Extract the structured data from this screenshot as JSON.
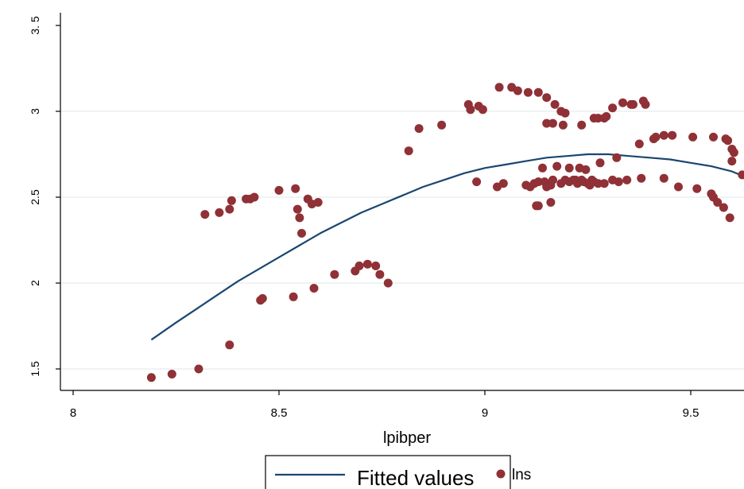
{
  "chart_data": {
    "type": "scatter",
    "title": "",
    "xlabel": "lpibper",
    "ylabel": "",
    "xlim": [
      8,
      9.62
    ],
    "ylim": [
      1.38,
      3.52
    ],
    "xticks": [
      {
        "value": 8,
        "label": "8"
      },
      {
        "value": 8.5,
        "label": "8.5"
      },
      {
        "value": 9,
        "label": "9"
      },
      {
        "value": 9.5,
        "label": "9.5"
      }
    ],
    "yticks": [
      {
        "value": 1.5,
        "label": "1.5"
      },
      {
        "value": 2,
        "label": "2"
      },
      {
        "value": 2.5,
        "label": "2.5"
      },
      {
        "value": 3,
        "label": "3"
      },
      {
        "value": 3.5,
        "label": "3. 5"
      }
    ],
    "grid": true,
    "legend_position": "bottom",
    "colors": {
      "fit": "#1a4670",
      "points": "#8f3136",
      "grid": "#e3ecec"
    },
    "series": [
      {
        "name": "Fitted values",
        "kind": "line",
        "x": [
          8.19,
          8.25,
          8.3,
          8.35,
          8.4,
          8.45,
          8.5,
          8.55,
          8.6,
          8.65,
          8.7,
          8.75,
          8.8,
          8.85,
          8.9,
          8.95,
          9.0,
          9.05,
          9.1,
          9.15,
          9.2,
          9.25,
          9.3,
          9.35,
          9.4,
          9.45,
          9.5,
          9.55,
          9.6,
          9.62
        ],
        "y": [
          1.67,
          1.77,
          1.85,
          1.93,
          2.01,
          2.08,
          2.15,
          2.22,
          2.29,
          2.35,
          2.41,
          2.46,
          2.51,
          2.56,
          2.6,
          2.64,
          2.67,
          2.69,
          2.71,
          2.73,
          2.74,
          2.75,
          2.75,
          2.74,
          2.73,
          2.72,
          2.7,
          2.68,
          2.65,
          2.63
        ]
      },
      {
        "name": "lns",
        "kind": "scatter",
        "x": [
          8.19,
          8.24,
          8.305,
          8.38,
          8.455,
          8.46,
          8.535,
          8.585,
          8.635,
          8.685,
          8.695,
          8.715,
          8.735,
          8.745,
          8.765,
          8.32,
          8.355,
          8.38,
          8.385,
          8.42,
          8.43,
          8.44,
          8.5,
          8.54,
          8.545,
          8.55,
          8.555,
          8.57,
          8.58,
          8.595,
          8.815,
          8.84,
          8.895,
          8.96,
          8.965,
          8.985,
          8.995,
          9.035,
          9.065,
          9.08,
          9.105,
          9.13,
          9.15,
          9.17,
          9.185,
          9.195,
          9.15,
          9.165,
          9.19,
          9.235,
          9.265,
          9.275,
          9.29,
          9.295,
          9.31,
          9.335,
          9.355,
          9.36,
          9.385,
          9.39,
          9.375,
          9.41,
          9.415,
          9.435,
          9.455,
          9.505,
          9.555,
          9.585,
          9.59,
          9.6,
          9.605,
          9.6,
          8.98,
          9.03,
          9.045,
          9.1,
          9.11,
          9.12,
          9.13,
          9.145,
          9.15,
          9.16,
          9.165,
          9.185,
          9.195,
          9.205,
          9.215,
          9.22,
          9.225,
          9.235,
          9.24,
          9.25,
          9.255,
          9.26,
          9.265,
          9.275,
          9.29,
          9.31,
          9.325,
          9.345,
          9.38,
          9.435,
          9.47,
          9.515,
          9.55,
          9.555,
          9.565,
          9.58,
          9.595,
          9.625,
          9.16,
          9.13,
          9.125,
          9.14,
          9.175,
          9.205,
          9.23,
          9.245,
          9.28,
          9.32
        ],
        "y": [
          1.45,
          1.47,
          1.5,
          1.64,
          1.9,
          1.91,
          1.92,
          1.97,
          2.05,
          2.07,
          2.1,
          2.11,
          2.1,
          2.05,
          2.0,
          2.4,
          2.41,
          2.43,
          2.48,
          2.49,
          2.49,
          2.5,
          2.54,
          2.55,
          2.43,
          2.38,
          2.29,
          2.49,
          2.46,
          2.47,
          2.77,
          2.9,
          2.92,
          3.04,
          3.01,
          3.03,
          3.01,
          3.14,
          3.14,
          3.12,
          3.11,
          3.11,
          3.08,
          3.04,
          3.0,
          2.99,
          2.93,
          2.93,
          2.92,
          2.92,
          2.96,
          2.96,
          2.96,
          2.97,
          3.02,
          3.05,
          3.04,
          3.04,
          3.06,
          3.04,
          2.81,
          2.84,
          2.85,
          2.86,
          2.86,
          2.85,
          2.85,
          2.84,
          2.83,
          2.78,
          2.76,
          2.71,
          2.59,
          2.56,
          2.58,
          2.57,
          2.56,
          2.58,
          2.59,
          2.59,
          2.56,
          2.57,
          2.6,
          2.58,
          2.6,
          2.59,
          2.6,
          2.6,
          2.58,
          2.6,
          2.59,
          2.58,
          2.57,
          2.6,
          2.59,
          2.58,
          2.58,
          2.6,
          2.59,
          2.6,
          2.61,
          2.61,
          2.56,
          2.55,
          2.52,
          2.5,
          2.47,
          2.44,
          2.38,
          2.63,
          2.47,
          2.45,
          2.45,
          2.67,
          2.68,
          2.67,
          2.67,
          2.66,
          2.7,
          2.73
        ]
      }
    ],
    "legend": [
      {
        "name": "Fitted values"
      },
      {
        "name": "lns"
      }
    ]
  }
}
